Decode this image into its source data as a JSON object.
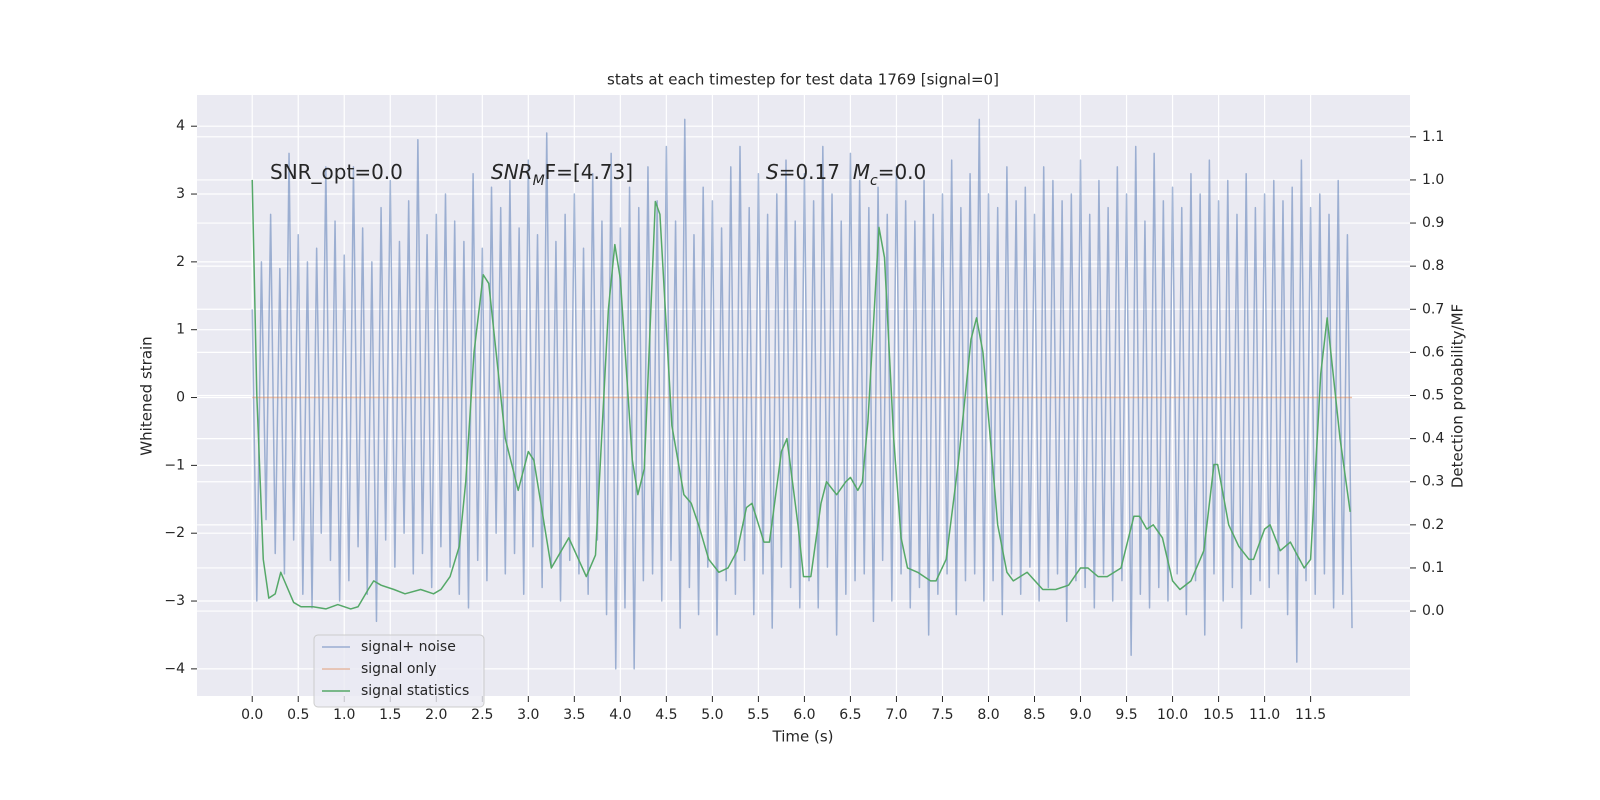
{
  "chart_data": {
    "type": "line",
    "title": "stats at each timestep for test data 1769 [signal=0]",
    "xlabel": "Time (s)",
    "ylabel": "Whitened strain",
    "y2label": "Detection probability/MF",
    "annotations": [
      [
        {
          "text": "SNR_opt=0.0"
        }
      ],
      [
        {
          "text": "SNR",
          "italic": true
        },
        {
          "text": "M",
          "italic": true,
          "sub": true
        },
        {
          "text": "F=[4.73]"
        }
      ],
      [
        {
          "text": "S",
          "italic": true
        },
        {
          "text": "=0.17  "
        },
        {
          "text": "M",
          "italic": true
        },
        {
          "text": "c",
          "italic": true,
          "sub": true
        },
        {
          "text": "=0.0"
        }
      ]
    ],
    "xlim": [
      -0.6,
      12.58
    ],
    "ylim": [
      -4.4,
      4.46
    ],
    "y2lim": [
      -0.197,
      1.197
    ],
    "xticks": [
      {
        "value": 0,
        "label": "0.0"
      },
      0.5,
      {
        "value": 1,
        "label": "1.0"
      },
      1.5,
      {
        "value": 2,
        "label": "2.0"
      },
      2.5,
      {
        "value": 3,
        "label": "3.0"
      },
      3.5,
      {
        "value": 4,
        "label": "4.0"
      },
      4.5,
      {
        "value": 5,
        "label": "5.0"
      },
      5.5,
      {
        "value": 6,
        "label": "6.0"
      },
      6.5,
      {
        "value": 7,
        "label": "7.0"
      },
      7.5,
      {
        "value": 8,
        "label": "8.0"
      },
      8.5,
      {
        "value": 9,
        "label": "9.0"
      },
      9.5,
      {
        "value": 10,
        "label": "10.0"
      },
      10.5,
      {
        "value": 11,
        "label": "11.0"
      },
      11.5
    ],
    "yticks": [
      {
        "value": -4,
        "label": "−4"
      },
      {
        "value": -3,
        "label": "−3"
      },
      {
        "value": -2,
        "label": "−2"
      },
      {
        "value": -1,
        "label": "−1"
      },
      0,
      1,
      2,
      3,
      4
    ],
    "y2ticks": [
      {
        "value": 0,
        "label": "0.0"
      },
      0.1,
      0.2,
      0.3,
      0.4,
      0.5,
      0.6,
      0.7,
      0.8,
      0.9,
      {
        "value": 1,
        "label": "1.0"
      },
      1.1
    ],
    "grid": true,
    "legend": "lower left",
    "series": [
      {
        "name": "signal+ noise",
        "color": "#4c72b0",
        "opacity": 0.5,
        "x": [
          0,
          0.05,
          0.1,
          0.15,
          0.2,
          0.25,
          0.3,
          0.35,
          0.4,
          0.45,
          0.5,
          0.55,
          0.6,
          0.65,
          0.7,
          0.75,
          0.8,
          0.85,
          0.9,
          0.95,
          1,
          1.05,
          1.1,
          1.15,
          1.2,
          1.25,
          1.3,
          1.35,
          1.4,
          1.45,
          1.5,
          1.55,
          1.6,
          1.65,
          1.7,
          1.75,
          1.8,
          1.85,
          1.9,
          1.95,
          2,
          2.05,
          2.1,
          2.15,
          2.2,
          2.25,
          2.3,
          2.35,
          2.4,
          2.45,
          2.5,
          2.55,
          2.6,
          2.65,
          2.7,
          2.75,
          2.8,
          2.85,
          2.9,
          2.95,
          3,
          3.05,
          3.1,
          3.15,
          3.2,
          3.25,
          3.3,
          3.35,
          3.4,
          3.45,
          3.5,
          3.55,
          3.6,
          3.65,
          3.7,
          3.75,
          3.8,
          3.85,
          3.9,
          3.95,
          4,
          4.05,
          4.1,
          4.15,
          4.2,
          4.25,
          4.3,
          4.35,
          4.4,
          4.45,
          4.5,
          4.55,
          4.6,
          4.65,
          4.7,
          4.75,
          4.8,
          4.85,
          4.9,
          4.95,
          5,
          5.05,
          5.1,
          5.15,
          5.2,
          5.25,
          5.3,
          5.35,
          5.4,
          5.45,
          5.5,
          5.55,
          5.6,
          5.65,
          5.7,
          5.75,
          5.8,
          5.85,
          5.9,
          5.95,
          6,
          6.05,
          6.1,
          6.15,
          6.2,
          6.25,
          6.3,
          6.35,
          6.4,
          6.45,
          6.5,
          6.55,
          6.6,
          6.65,
          6.7,
          6.75,
          6.8,
          6.85,
          6.9,
          6.95,
          7,
          7.05,
          7.1,
          7.15,
          7.2,
          7.25,
          7.3,
          7.35,
          7.4,
          7.45,
          7.5,
          7.55,
          7.6,
          7.65,
          7.7,
          7.75,
          7.8,
          7.85,
          7.9,
          7.95,
          8,
          8.05,
          8.1,
          8.15,
          8.2,
          8.25,
          8.3,
          8.35,
          8.4,
          8.45,
          8.5,
          8.55,
          8.6,
          8.65,
          8.7,
          8.75,
          8.8,
          8.85,
          8.9,
          8.95,
          9,
          9.05,
          9.1,
          9.15,
          9.2,
          9.25,
          9.3,
          9.35,
          9.4,
          9.45,
          9.5,
          9.55,
          9.6,
          9.65,
          9.7,
          9.75,
          9.8,
          9.85,
          9.9,
          9.95,
          10,
          10.05,
          10.1,
          10.15,
          10.2,
          10.25,
          10.3,
          10.35,
          10.4,
          10.45,
          10.5,
          10.55,
          10.6,
          10.65,
          10.7,
          10.75,
          10.8,
          10.85,
          10.9,
          10.95,
          11,
          11.05,
          11.1,
          11.15,
          11.2,
          11.25,
          11.3,
          11.35,
          11.4,
          11.45,
          11.5,
          11.55,
          11.6,
          11.65,
          11.7,
          11.75,
          11.8,
          11.85,
          11.9,
          11.95
        ],
        "values": [
          1.3,
          -3.0,
          2.0,
          -1.8,
          2.7,
          -2.3,
          1.9,
          -2.6,
          3.6,
          -2.1,
          2.4,
          -2.9,
          2.0,
          -3.1,
          2.2,
          -2.0,
          3.4,
          -2.4,
          2.6,
          -3.0,
          2.1,
          -2.7,
          3.4,
          -2.2,
          2.5,
          -2.9,
          2.0,
          -3.3,
          2.8,
          -2.1,
          3.2,
          -2.5,
          2.3,
          -2.0,
          2.9,
          -2.6,
          3.8,
          -2.3,
          2.4,
          -2.8,
          2.7,
          -2.2,
          3.0,
          -2.5,
          2.6,
          -2.9,
          2.3,
          -3.1,
          3.3,
          -2.4,
          2.2,
          -2.7,
          3.1,
          -2.0,
          2.8,
          -2.6,
          3.2,
          -2.3,
          2.5,
          -2.9,
          3.5,
          -2.2,
          2.4,
          -2.8,
          3.9,
          -2.5,
          2.3,
          -3.0,
          2.7,
          -2.4,
          3.0,
          -2.6,
          2.2,
          -2.9,
          3.3,
          -2.1,
          2.6,
          -3.2,
          3.6,
          -4.0,
          2.5,
          -3.1,
          3.1,
          -4.0,
          2.8,
          -2.7,
          3.4,
          -2.6,
          2.9,
          -3.0,
          3.7,
          -2.4,
          2.6,
          -3.4,
          4.1,
          -2.8,
          2.4,
          -3.2,
          3.1,
          -2.5,
          2.9,
          -3.5,
          2.5,
          -2.7,
          3.4,
          -2.9,
          3.7,
          -2.4,
          2.8,
          -3.2,
          3.3,
          -2.6,
          2.7,
          -3.4,
          3.0,
          -2.5,
          3.5,
          -2.8,
          2.6,
          -3.1,
          3.3,
          -2.7,
          2.9,
          -3.1,
          3.7,
          -2.5,
          3.0,
          -3.5,
          2.6,
          -2.9,
          3.6,
          -2.7,
          3.2,
          -2.6,
          2.8,
          -3.3,
          3.1,
          -2.4,
          2.7,
          -3.0,
          3.4,
          -2.6,
          2.9,
          -3.1,
          2.6,
          -2.8,
          3.2,
          -3.5,
          2.7,
          -2.9,
          3.0,
          -2.6,
          3.5,
          -3.2,
          2.8,
          -2.7,
          3.3,
          -2.6,
          4.1,
          -3.0,
          3.0,
          -2.7,
          2.8,
          -3.2,
          3.4,
          -2.6,
          2.9,
          -2.9,
          3.1,
          -2.5,
          2.7,
          -3.0,
          3.4,
          -2.8,
          3.2,
          -2.6,
          2.9,
          -3.3,
          3.0,
          -2.7,
          3.5,
          -2.8,
          2.7,
          -3.1,
          3.2,
          -2.6,
          2.8,
          -3.0,
          3.4,
          -2.7,
          3.0,
          -3.8,
          3.7,
          -2.9,
          2.6,
          -3.1,
          3.6,
          -2.8,
          2.9,
          -3.0,
          3.1,
          -2.6,
          2.8,
          -3.2,
          3.3,
          -2.7,
          3.0,
          -3.5,
          3.5,
          -2.6,
          2.9,
          -3.0,
          3.2,
          -2.8,
          2.7,
          -3.4,
          3.3,
          -2.9,
          2.8,
          -2.7,
          3.0,
          -2.8,
          3.2,
          -2.6,
          2.9,
          -3.2,
          3.1,
          -3.9,
          3.5,
          -2.7,
          2.8,
          -2.9,
          3.0,
          -2.6,
          2.7,
          -3.1,
          3.2,
          -2.9,
          2.4,
          -3.4
        ]
      },
      {
        "name": "signal only",
        "color": "#dd8452",
        "opacity": 0.5,
        "x": [
          0,
          11.95
        ],
        "values": [
          0,
          0
        ]
      },
      {
        "name": "signal statistics",
        "color": "#55a868",
        "axis": "y2",
        "x": [
          0,
          0.05,
          0.12,
          0.18,
          0.25,
          0.31,
          0.45,
          0.53,
          0.66,
          0.8,
          0.93,
          1.07,
          1.15,
          1.26,
          1.32,
          1.4,
          1.54,
          1.66,
          1.83,
          1.97,
          2.05,
          2.15,
          2.25,
          2.32,
          2.41,
          2.51,
          2.57,
          2.65,
          2.75,
          2.89,
          3.0,
          3.06,
          3.25,
          3.44,
          3.63,
          3.73,
          3.87,
          3.94,
          4.0,
          4.13,
          4.19,
          4.26,
          4.38,
          4.43,
          4.56,
          4.69,
          4.77,
          4.85,
          4.96,
          5.07,
          5.17,
          5.27,
          5.37,
          5.43,
          5.56,
          5.62,
          5.75,
          5.81,
          5.93,
          5.99,
          6.07,
          6.18,
          6.24,
          6.35,
          6.45,
          6.5,
          6.58,
          6.63,
          6.69,
          6.81,
          6.87,
          6.97,
          7.05,
          7.12,
          7.23,
          7.37,
          7.43,
          7.54,
          7.67,
          7.81,
          7.87,
          7.94,
          8.1,
          8.2,
          8.27,
          8.42,
          8.59,
          8.73,
          8.87,
          9.0,
          9.08,
          9.19,
          9.29,
          9.44,
          9.58,
          9.64,
          9.72,
          9.79,
          9.89,
          10.0,
          10.08,
          10.2,
          10.34,
          10.45,
          10.49,
          10.61,
          10.72,
          10.83,
          10.88,
          11.0,
          11.06,
          11.17,
          11.28,
          11.43,
          11.5,
          11.61,
          11.68,
          11.82,
          11.93
        ],
        "values": [
          1.0,
          0.5,
          0.12,
          0.03,
          0.04,
          0.09,
          0.02,
          0.01,
          0.01,
          0.005,
          0.015,
          0.005,
          0.01,
          0.05,
          0.07,
          0.06,
          0.05,
          0.04,
          0.05,
          0.04,
          0.05,
          0.08,
          0.15,
          0.3,
          0.6,
          0.78,
          0.76,
          0.6,
          0.4,
          0.28,
          0.37,
          0.35,
          0.1,
          0.17,
          0.08,
          0.13,
          0.7,
          0.85,
          0.77,
          0.35,
          0.27,
          0.33,
          0.95,
          0.92,
          0.43,
          0.27,
          0.25,
          0.2,
          0.12,
          0.09,
          0.1,
          0.14,
          0.24,
          0.25,
          0.16,
          0.16,
          0.37,
          0.4,
          0.2,
          0.08,
          0.08,
          0.25,
          0.3,
          0.27,
          0.3,
          0.31,
          0.28,
          0.3,
          0.44,
          0.89,
          0.82,
          0.4,
          0.17,
          0.1,
          0.09,
          0.07,
          0.07,
          0.12,
          0.34,
          0.63,
          0.68,
          0.6,
          0.2,
          0.09,
          0.07,
          0.09,
          0.05,
          0.05,
          0.06,
          0.1,
          0.1,
          0.08,
          0.08,
          0.1,
          0.22,
          0.22,
          0.19,
          0.2,
          0.17,
          0.07,
          0.05,
          0.07,
          0.14,
          0.34,
          0.34,
          0.2,
          0.15,
          0.12,
          0.12,
          0.19,
          0.2,
          0.14,
          0.16,
          0.1,
          0.12,
          0.55,
          0.68,
          0.4,
          0.23
        ]
      }
    ]
  }
}
